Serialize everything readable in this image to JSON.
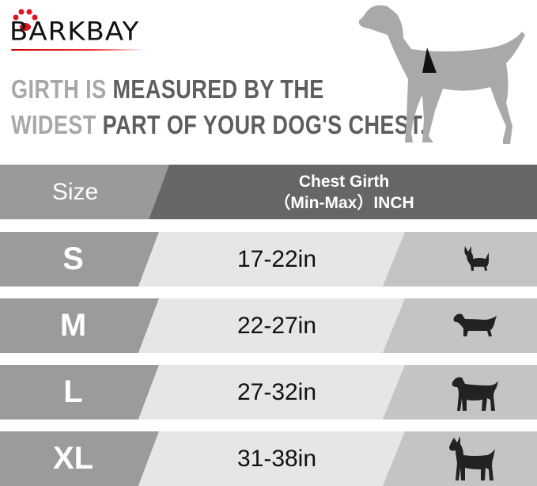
{
  "brand": {
    "name": "BARKBAY",
    "accent": "#e0141e"
  },
  "headline": {
    "line1": {
      "light": "GIRTH IS ",
      "dark": "MEASURED BY THE"
    },
    "line2": {
      "light": "WIDEST ",
      "dark": "PART OF YOUR DOG'S CHEST."
    }
  },
  "table": {
    "header": {
      "size": "Size",
      "girth_line1": "Chest Girth",
      "girth_line2": "（Min-Max）INCH"
    },
    "rows": [
      {
        "size": "S",
        "girth": "17-22in",
        "icon": "chihuahua-icon"
      },
      {
        "size": "M",
        "girth": "22-27in",
        "icon": "dachshund-icon"
      },
      {
        "size": "L",
        "girth": "27-32in",
        "icon": "labrador-icon"
      },
      {
        "size": "XL",
        "girth": "31-38in",
        "icon": "great-dane-icon"
      }
    ]
  },
  "colors": {
    "size_col": "#9b9b9b",
    "girth_col": "#e6e6e6",
    "icon_col": "#c4c4c4",
    "header_dark": "#666666"
  }
}
